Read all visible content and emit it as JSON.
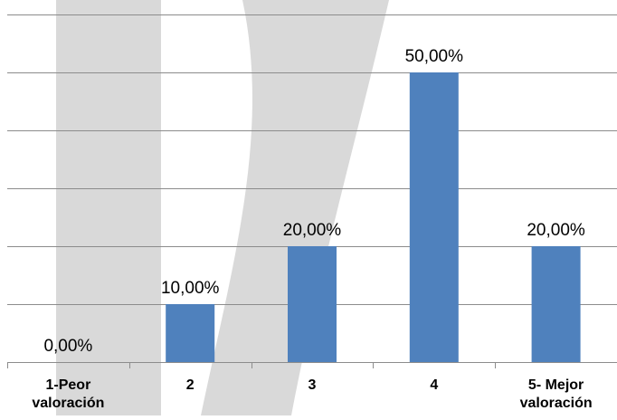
{
  "chart_data": {
    "type": "bar",
    "categories": [
      [
        "1-Peor",
        "valoración"
      ],
      [
        "2"
      ],
      [
        "3"
      ],
      [
        "4"
      ],
      [
        "5- Mejor",
        "valoración"
      ]
    ],
    "values": [
      0,
      10,
      20,
      50,
      20
    ],
    "data_labels": [
      "0,00%",
      "10,00%",
      "20,00%",
      "50,00%",
      "20,00%"
    ],
    "ylim": [
      0,
      60
    ],
    "y_gridline_step": 10,
    "grid": true,
    "legend": "none",
    "title": "",
    "xlabel": "",
    "ylabel": "",
    "colors": {
      "bar": "#4F81BD",
      "gridline": "#8C8C8C",
      "axis": "#8C8C8C",
      "text": "#000000",
      "watermark": "#D9D9D9"
    }
  }
}
